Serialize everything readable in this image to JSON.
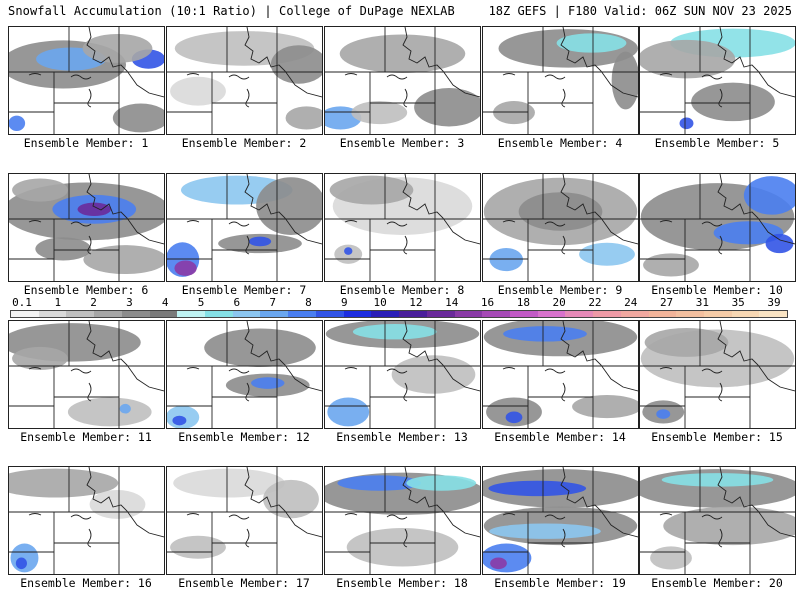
{
  "header": {
    "left_title": "Snowfall Accumulation (10:1 Ratio) | College of DuPage NEXLAB",
    "right_title": "18Z GEFS | F180 Valid: 06Z SUN NOV 23 2025"
  },
  "colorbar": {
    "tick_labels": [
      "0.1",
      "1",
      "2",
      "3",
      "4",
      "5",
      "6",
      "7",
      "8",
      "9",
      "10",
      "12",
      "14",
      "16",
      "18",
      "20",
      "22",
      "24",
      "27",
      "31",
      "35",
      "39"
    ],
    "colors": [
      "#f2f2f2",
      "#d9d9d9",
      "#bfbfbf",
      "#a6a6a6",
      "#8c8c8c",
      "#7a7a7a",
      "#bff2f2",
      "#86e0e6",
      "#8cc6f0",
      "#6aa6ee",
      "#4a7ef0",
      "#3254e6",
      "#1e2ee0",
      "#2b1fb8",
      "#4a1f9a",
      "#6a2a9a",
      "#8a3aa6",
      "#a64ab6",
      "#c25ac6",
      "#d872cc",
      "#e68ab8",
      "#ee9aa6",
      "#f0a8a0",
      "#f2b49a",
      "#f4c0a0",
      "#f6cca8",
      "#f8d8b4",
      "#fae4c4"
    ]
  },
  "panels": [
    {
      "label": "Ensemble Member: 1",
      "blobs": [
        [
          0.35,
          0.35,
          0.45,
          0.25,
          "#8c8c8c"
        ],
        [
          0.4,
          0.3,
          0.25,
          0.12,
          "#6aa6ee"
        ],
        [
          0.9,
          0.3,
          0.12,
          0.1,
          "#3254e6"
        ],
        [
          0.7,
          0.2,
          0.25,
          0.15,
          "#a6a6a6"
        ],
        [
          0.85,
          0.85,
          0.2,
          0.15,
          "#8c8c8c"
        ],
        [
          0.05,
          0.9,
          0.06,
          0.08,
          "#4a7ef0"
        ]
      ]
    },
    {
      "label": "Ensemble Member: 2",
      "blobs": [
        [
          0.5,
          0.2,
          0.5,
          0.18,
          "#bfbfbf"
        ],
        [
          0.85,
          0.35,
          0.2,
          0.2,
          "#8c8c8c"
        ],
        [
          0.9,
          0.85,
          0.15,
          0.12,
          "#a6a6a6"
        ],
        [
          0.2,
          0.6,
          0.2,
          0.15,
          "#d9d9d9"
        ]
      ]
    },
    {
      "label": "Ensemble Member: 3",
      "blobs": [
        [
          0.5,
          0.25,
          0.45,
          0.2,
          "#a6a6a6"
        ],
        [
          0.8,
          0.75,
          0.25,
          0.2,
          "#8c8c8c"
        ],
        [
          0.1,
          0.85,
          0.15,
          0.12,
          "#6aa6ee"
        ],
        [
          0.35,
          0.8,
          0.2,
          0.12,
          "#bfbfbf"
        ]
      ]
    },
    {
      "label": "Ensemble Member: 4",
      "blobs": [
        [
          0.55,
          0.2,
          0.5,
          0.2,
          "#8c8c8c"
        ],
        [
          0.7,
          0.15,
          0.25,
          0.1,
          "#86e0e6"
        ],
        [
          0.92,
          0.5,
          0.1,
          0.3,
          "#8c8c8c"
        ],
        [
          0.2,
          0.8,
          0.15,
          0.12,
          "#a6a6a6"
        ]
      ]
    },
    {
      "label": "Ensemble Member: 5",
      "blobs": [
        [
          0.6,
          0.15,
          0.45,
          0.15,
          "#86e0e6"
        ],
        [
          0.3,
          0.3,
          0.35,
          0.2,
          "#a6a6a6"
        ],
        [
          0.6,
          0.7,
          0.3,
          0.2,
          "#8c8c8c"
        ],
        [
          0.3,
          0.9,
          0.05,
          0.06,
          "#3254e6"
        ]
      ]
    },
    {
      "label": "Ensemble Member: 6",
      "blobs": [
        [
          0.5,
          0.35,
          0.6,
          0.3,
          "#8c8c8c"
        ],
        [
          0.55,
          0.33,
          0.3,
          0.15,
          "#4a7ef0"
        ],
        [
          0.55,
          0.33,
          0.12,
          0.07,
          "#6a2a9a"
        ],
        [
          0.2,
          0.15,
          0.2,
          0.12,
          "#a6a6a6"
        ],
        [
          0.75,
          0.8,
          0.3,
          0.15,
          "#a6a6a6"
        ],
        [
          0.35,
          0.7,
          0.2,
          0.12,
          "#8c8c8c"
        ]
      ]
    },
    {
      "label": "Ensemble Member: 7",
      "blobs": [
        [
          0.45,
          0.15,
          0.4,
          0.15,
          "#8cc6f0"
        ],
        [
          0.8,
          0.3,
          0.25,
          0.3,
          "#8c8c8c"
        ],
        [
          0.1,
          0.8,
          0.12,
          0.18,
          "#4a7ef0"
        ],
        [
          0.12,
          0.88,
          0.08,
          0.08,
          "#8a3aa6"
        ],
        [
          0.6,
          0.65,
          0.3,
          0.1,
          "#8c8c8c"
        ],
        [
          0.6,
          0.63,
          0.08,
          0.05,
          "#3254e6"
        ]
      ]
    },
    {
      "label": "Ensemble Member: 8",
      "blobs": [
        [
          0.5,
          0.3,
          0.5,
          0.3,
          "#d9d9d9"
        ],
        [
          0.3,
          0.15,
          0.3,
          0.15,
          "#a6a6a6"
        ],
        [
          0.15,
          0.75,
          0.1,
          0.1,
          "#bfbfbf"
        ],
        [
          0.15,
          0.72,
          0.03,
          0.04,
          "#3254e6"
        ]
      ]
    },
    {
      "label": "Ensemble Member: 9",
      "blobs": [
        [
          0.5,
          0.35,
          0.55,
          0.35,
          "#a6a6a6"
        ],
        [
          0.5,
          0.35,
          0.3,
          0.2,
          "#8c8c8c"
        ],
        [
          0.15,
          0.8,
          0.12,
          0.12,
          "#6aa6ee"
        ],
        [
          0.8,
          0.75,
          0.2,
          0.12,
          "#8cc6f0"
        ]
      ]
    },
    {
      "label": "Ensemble Member: 10",
      "blobs": [
        [
          0.5,
          0.4,
          0.55,
          0.35,
          "#8c8c8c"
        ],
        [
          0.85,
          0.2,
          0.2,
          0.2,
          "#4a7ef0"
        ],
        [
          0.7,
          0.55,
          0.25,
          0.12,
          "#4a7ef0"
        ],
        [
          0.9,
          0.65,
          0.1,
          0.1,
          "#3254e6"
        ],
        [
          0.2,
          0.85,
          0.2,
          0.12,
          "#a6a6a6"
        ]
      ]
    },
    {
      "label": "Ensemble Member: 11",
      "blobs": [
        [
          0.4,
          0.2,
          0.5,
          0.2,
          "#8c8c8c"
        ],
        [
          0.2,
          0.35,
          0.2,
          0.12,
          "#a6a6a6"
        ],
        [
          0.65,
          0.85,
          0.3,
          0.15,
          "#bfbfbf"
        ],
        [
          0.75,
          0.82,
          0.04,
          0.05,
          "#6aa6ee"
        ]
      ]
    },
    {
      "label": "Ensemble Member: 12",
      "blobs": [
        [
          0.6,
          0.25,
          0.4,
          0.2,
          "#8c8c8c"
        ],
        [
          0.65,
          0.6,
          0.3,
          0.12,
          "#8c8c8c"
        ],
        [
          0.65,
          0.58,
          0.12,
          0.06,
          "#4a7ef0"
        ],
        [
          0.1,
          0.9,
          0.12,
          0.12,
          "#8cc6f0"
        ],
        [
          0.08,
          0.93,
          0.05,
          0.05,
          "#3254e6"
        ]
      ]
    },
    {
      "label": "Ensemble Member: 13",
      "blobs": [
        [
          0.5,
          0.12,
          0.55,
          0.15,
          "#8c8c8c"
        ],
        [
          0.45,
          0.1,
          0.3,
          0.08,
          "#86e0e6"
        ],
        [
          0.15,
          0.85,
          0.15,
          0.15,
          "#6aa6ee"
        ],
        [
          0.7,
          0.5,
          0.3,
          0.2,
          "#bfbfbf"
        ]
      ]
    },
    {
      "label": "Ensemble Member: 14",
      "blobs": [
        [
          0.5,
          0.15,
          0.55,
          0.2,
          "#8c8c8c"
        ],
        [
          0.4,
          0.12,
          0.3,
          0.08,
          "#4a7ef0"
        ],
        [
          0.2,
          0.85,
          0.2,
          0.15,
          "#8c8c8c"
        ],
        [
          0.2,
          0.9,
          0.06,
          0.06,
          "#3254e6"
        ],
        [
          0.8,
          0.8,
          0.25,
          0.12,
          "#a6a6a6"
        ]
      ]
    },
    {
      "label": "Ensemble Member: 15",
      "blobs": [
        [
          0.5,
          0.35,
          0.55,
          0.3,
          "#bfbfbf"
        ],
        [
          0.3,
          0.2,
          0.3,
          0.15,
          "#a6a6a6"
        ],
        [
          0.15,
          0.85,
          0.15,
          0.12,
          "#8c8c8c"
        ],
        [
          0.15,
          0.87,
          0.05,
          0.05,
          "#4a7ef0"
        ]
      ]
    },
    {
      "label": "Ensemble Member: 16",
      "blobs": [
        [
          0.3,
          0.15,
          0.45,
          0.15,
          "#a6a6a6"
        ],
        [
          0.1,
          0.85,
          0.1,
          0.15,
          "#6aa6ee"
        ],
        [
          0.08,
          0.9,
          0.04,
          0.06,
          "#3254e6"
        ],
        [
          0.7,
          0.35,
          0.2,
          0.15,
          "#d9d9d9"
        ]
      ]
    },
    {
      "label": "Ensemble Member: 17",
      "blobs": [
        [
          0.4,
          0.15,
          0.4,
          0.15,
          "#d9d9d9"
        ],
        [
          0.8,
          0.3,
          0.2,
          0.2,
          "#bfbfbf"
        ],
        [
          0.2,
          0.75,
          0.2,
          0.12,
          "#bfbfbf"
        ]
      ]
    },
    {
      "label": "Ensemble Member: 18",
      "blobs": [
        [
          0.5,
          0.25,
          0.6,
          0.22,
          "#8c8c8c"
        ],
        [
          0.35,
          0.15,
          0.3,
          0.08,
          "#4a7ef0"
        ],
        [
          0.75,
          0.15,
          0.25,
          0.08,
          "#86e0e6"
        ],
        [
          0.5,
          0.75,
          0.4,
          0.2,
          "#bfbfbf"
        ]
      ]
    },
    {
      "label": "Ensemble Member: 19",
      "blobs": [
        [
          0.5,
          0.2,
          0.6,
          0.2,
          "#8c8c8c"
        ],
        [
          0.35,
          0.2,
          0.35,
          0.08,
          "#3254e6"
        ],
        [
          0.5,
          0.55,
          0.55,
          0.2,
          "#8c8c8c"
        ],
        [
          0.4,
          0.6,
          0.4,
          0.08,
          "#8cc6f0"
        ],
        [
          0.15,
          0.85,
          0.18,
          0.15,
          "#4a7ef0"
        ],
        [
          0.1,
          0.9,
          0.06,
          0.06,
          "#8a3aa6"
        ]
      ]
    },
    {
      "label": "Ensemble Member: 20",
      "blobs": [
        [
          0.5,
          0.2,
          0.6,
          0.2,
          "#8c8c8c"
        ],
        [
          0.5,
          0.12,
          0.4,
          0.07,
          "#86e0e6"
        ],
        [
          0.6,
          0.55,
          0.5,
          0.2,
          "#a6a6a6"
        ],
        [
          0.2,
          0.85,
          0.15,
          0.12,
          "#bfbfbf"
        ]
      ]
    }
  ]
}
